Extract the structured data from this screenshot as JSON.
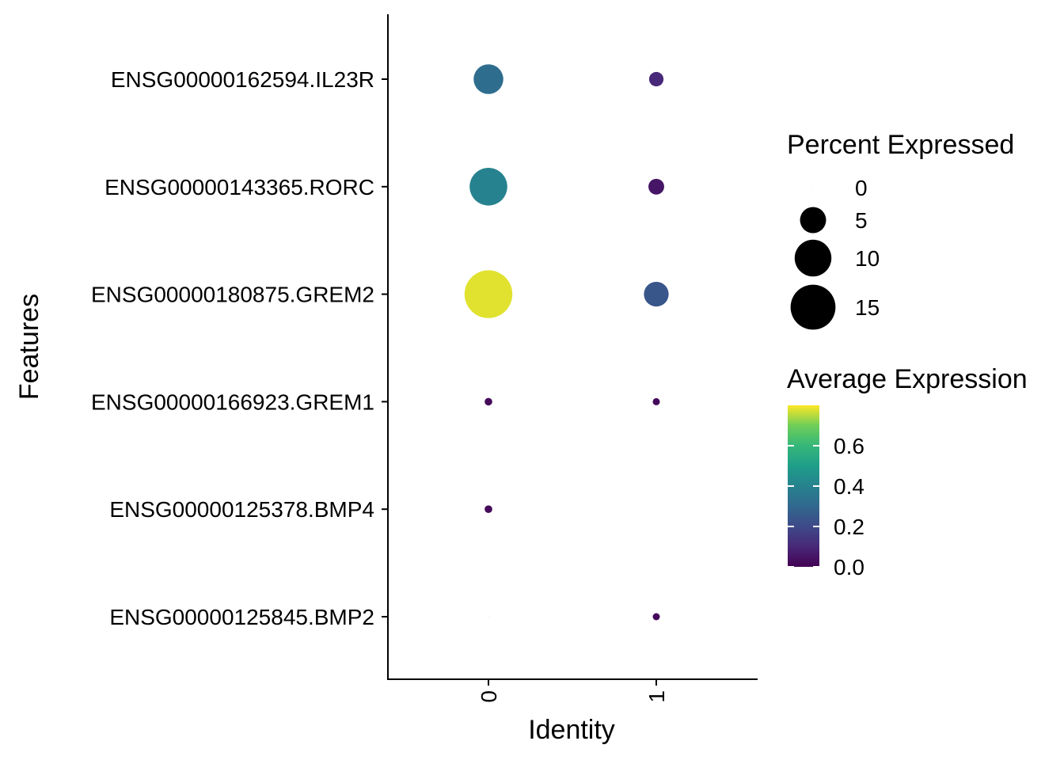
{
  "chart_data": {
    "type": "dotplot",
    "title": "",
    "xlabel": "Identity",
    "ylabel": "Features",
    "categories": [
      "0",
      "1"
    ],
    "features": [
      "ENSG00000162594.IL23R",
      "ENSG00000143365.RORC",
      "ENSG00000180875.GREM2",
      "ENSG00000166923.GREM1",
      "ENSG00000125378.BMP4",
      "ENSG00000125845.BMP2"
    ],
    "points": [
      {
        "feature": "ENSG00000162594.IL23R",
        "identity": "0",
        "percent_expressed": 6.5,
        "average_expression": 0.32
      },
      {
        "feature": "ENSG00000162594.IL23R",
        "identity": "1",
        "percent_expressed": 1.5,
        "average_expression": 0.1
      },
      {
        "feature": "ENSG00000143365.RORC",
        "identity": "0",
        "percent_expressed": 10.5,
        "average_expression": 0.4
      },
      {
        "feature": "ENSG00000143365.RORC",
        "identity": "1",
        "percent_expressed": 1.8,
        "average_expression": 0.05
      },
      {
        "feature": "ENSG00000180875.GREM2",
        "identity": "0",
        "percent_expressed": 17.0,
        "average_expression": 0.78
      },
      {
        "feature": "ENSG00000180875.GREM2",
        "identity": "1",
        "percent_expressed": 4.5,
        "average_expression": 0.24
      },
      {
        "feature": "ENSG00000166923.GREM1",
        "identity": "0",
        "percent_expressed": 0.4,
        "average_expression": 0.02
      },
      {
        "feature": "ENSG00000166923.GREM1",
        "identity": "1",
        "percent_expressed": 0.35,
        "average_expression": 0.02
      },
      {
        "feature": "ENSG00000125378.BMP4",
        "identity": "0",
        "percent_expressed": 0.4,
        "average_expression": 0.02
      },
      {
        "feature": "ENSG00000125378.BMP4",
        "identity": "1",
        "percent_expressed": 0.0,
        "average_expression": 0.0
      },
      {
        "feature": "ENSG00000125845.BMP2",
        "identity": "0",
        "percent_expressed": 0.0,
        "average_expression": 0.0
      },
      {
        "feature": "ENSG00000125845.BMP2",
        "identity": "1",
        "percent_expressed": 0.35,
        "average_expression": 0.02
      }
    ],
    "size_legend": {
      "title": "Percent Expressed",
      "breaks": [
        0,
        5,
        10,
        15
      ],
      "labels": [
        "0",
        "5",
        "10",
        "15"
      ]
    },
    "color_legend": {
      "title": "Average Expression",
      "range": [
        0,
        0.8
      ],
      "breaks": [
        0.0,
        0.2,
        0.4,
        0.6
      ],
      "labels": [
        "0.0",
        "0.2",
        "0.4",
        "0.6"
      ],
      "colormap": "viridis"
    },
    "grid": false,
    "legend_position": "right"
  }
}
